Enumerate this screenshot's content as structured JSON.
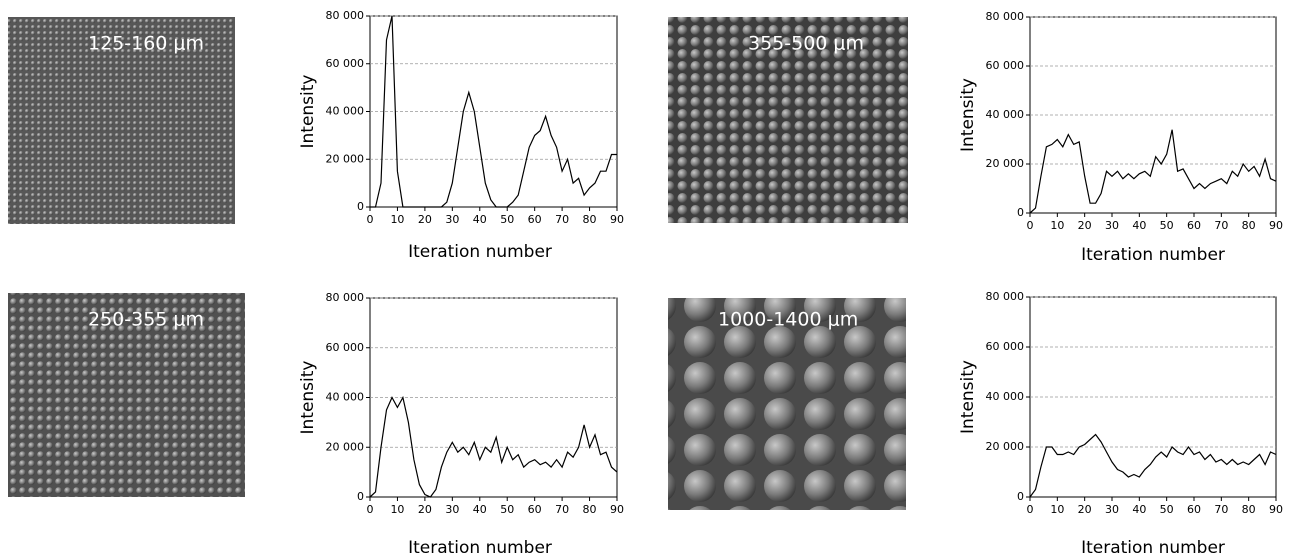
{
  "images": [
    {
      "label": "125-160 μm"
    },
    {
      "label": "355-500 μm"
    },
    {
      "label": "250-355 μm"
    },
    {
      "label": "1000-1400 μm"
    }
  ],
  "chart_data": [
    {
      "type": "line",
      "xlabel": "Iteration number",
      "ylabel": "Intensity",
      "xlim": [
        0,
        90
      ],
      "ylim": [
        0,
        80000
      ],
      "grid": true,
      "xticks": [
        0,
        10,
        20,
        30,
        40,
        50,
        60,
        70,
        80,
        90
      ],
      "yticks": [
        0,
        {
          "value": 20000,
          "label": "20 000"
        },
        {
          "value": 40000,
          "label": "40 000"
        },
        {
          "value": 60000,
          "label": "60 000"
        },
        {
          "value": 80000,
          "label": "80 000"
        }
      ],
      "x": [
        0,
        2,
        4,
        6,
        8,
        10,
        12,
        14,
        16,
        18,
        20,
        22,
        24,
        26,
        28,
        30,
        32,
        34,
        36,
        38,
        40,
        42,
        44,
        46,
        48,
        50,
        52,
        54,
        56,
        58,
        60,
        62,
        64,
        66,
        68,
        70,
        72,
        74,
        76,
        78,
        80,
        82,
        84,
        86,
        88,
        90
      ],
      "color": "#000000",
      "values": [
        0,
        0,
        10000,
        70000,
        80000,
        15000,
        0,
        0,
        0,
        0,
        0,
        0,
        0,
        0,
        2000,
        10000,
        25000,
        40000,
        48000,
        40000,
        25000,
        10000,
        3000,
        0,
        0,
        0,
        2000,
        5000,
        15000,
        25000,
        30000,
        32000,
        38000,
        30000,
        25000,
        15000,
        20000,
        10000,
        12000,
        5000,
        8000,
        10000,
        15000,
        15000,
        22000,
        22000
      ]
    },
    {
      "type": "line",
      "xlabel": "Iteration number",
      "ylabel": "Intensity",
      "xlim": [
        0,
        90
      ],
      "ylim": [
        0,
        80000
      ],
      "grid": true,
      "xticks": [
        0,
        10,
        20,
        30,
        40,
        50,
        60,
        70,
        80,
        90
      ],
      "yticks": [
        0,
        {
          "value": 20000,
          "label": "20 000"
        },
        {
          "value": 40000,
          "label": "40 000"
        },
        {
          "value": 60000,
          "label": "60 000"
        },
        {
          "value": 80000,
          "label": "80 000"
        }
      ],
      "x": [
        0,
        2,
        4,
        6,
        8,
        10,
        12,
        14,
        16,
        18,
        20,
        22,
        24,
        26,
        28,
        30,
        32,
        34,
        36,
        38,
        40,
        42,
        44,
        46,
        48,
        50,
        52,
        54,
        56,
        58,
        60,
        62,
        64,
        66,
        68,
        70,
        72,
        74,
        76,
        78,
        80,
        82,
        84,
        86,
        88,
        90
      ],
      "color": "#000000",
      "values": [
        0,
        2000,
        15000,
        27000,
        28000,
        30000,
        27000,
        32000,
        28000,
        29000,
        15000,
        4000,
        4000,
        8000,
        17000,
        15000,
        17000,
        14000,
        16000,
        14000,
        16000,
        17000,
        15000,
        23000,
        20000,
        24000,
        34000,
        17000,
        18000,
        14000,
        10000,
        12000,
        10000,
        12000,
        13000,
        14000,
        12000,
        17000,
        15000,
        20000,
        17000,
        19000,
        15000,
        22000,
        14000,
        13000
      ]
    },
    {
      "type": "line",
      "xlabel": "Iteration number",
      "ylabel": "Intensity",
      "xlim": [
        0,
        90
      ],
      "ylim": [
        0,
        80000
      ],
      "grid": true,
      "xticks": [
        0,
        10,
        20,
        30,
        40,
        50,
        60,
        70,
        80,
        90
      ],
      "yticks": [
        0,
        {
          "value": 20000,
          "label": "20 000"
        },
        {
          "value": 40000,
          "label": "40 000"
        },
        {
          "value": 60000,
          "label": "60 000"
        },
        {
          "value": 80000,
          "label": "80 000"
        }
      ],
      "x": [
        0,
        2,
        4,
        6,
        8,
        10,
        12,
        14,
        16,
        18,
        20,
        22,
        24,
        26,
        28,
        30,
        32,
        34,
        36,
        38,
        40,
        42,
        44,
        46,
        48,
        50,
        52,
        54,
        56,
        58,
        60,
        62,
        64,
        66,
        68,
        70,
        72,
        74,
        76,
        78,
        80,
        82,
        84,
        86,
        88,
        90
      ],
      "color": "#000000",
      "values": [
        0,
        2000,
        20000,
        35000,
        40000,
        36000,
        40000,
        30000,
        15000,
        5000,
        1000,
        0,
        3000,
        12000,
        18000,
        22000,
        18000,
        20000,
        17000,
        22000,
        15000,
        20000,
        18000,
        24000,
        14000,
        20000,
        15000,
        17000,
        12000,
        14000,
        15000,
        13000,
        14000,
        12000,
        15000,
        12000,
        18000,
        16000,
        20000,
        29000,
        20000,
        25000,
        17000,
        18000,
        12000,
        10000
      ]
    },
    {
      "type": "line",
      "xlabel": "Iteration number",
      "ylabel": "Intensity",
      "xlim": [
        0,
        90
      ],
      "ylim": [
        0,
        80000
      ],
      "grid": true,
      "xticks": [
        0,
        10,
        20,
        30,
        40,
        50,
        60,
        70,
        80,
        90
      ],
      "yticks": [
        0,
        {
          "value": 20000,
          "label": "20 000"
        },
        {
          "value": 40000,
          "label": "40 000"
        },
        {
          "value": 60000,
          "label": "60 000"
        },
        {
          "value": 80000,
          "label": "80 000"
        }
      ],
      "x": [
        0,
        2,
        4,
        6,
        8,
        10,
        12,
        14,
        16,
        18,
        20,
        22,
        24,
        26,
        28,
        30,
        32,
        34,
        36,
        38,
        40,
        42,
        44,
        46,
        48,
        50,
        52,
        54,
        56,
        58,
        60,
        62,
        64,
        66,
        68,
        70,
        72,
        74,
        76,
        78,
        80,
        82,
        84,
        86,
        88,
        90
      ],
      "color": "#000000",
      "values": [
        0,
        3000,
        12000,
        20000,
        20000,
        17000,
        17000,
        18000,
        17000,
        20000,
        21000,
        23000,
        25000,
        22000,
        18000,
        14000,
        11000,
        10000,
        8000,
        9000,
        8000,
        11000,
        13000,
        16000,
        18000,
        16000,
        20000,
        18000,
        17000,
        20000,
        17000,
        18000,
        15000,
        17000,
        14000,
        15000,
        13000,
        15000,
        13000,
        14000,
        13000,
        15000,
        17000,
        13000,
        18000,
        17000
      ]
    }
  ]
}
